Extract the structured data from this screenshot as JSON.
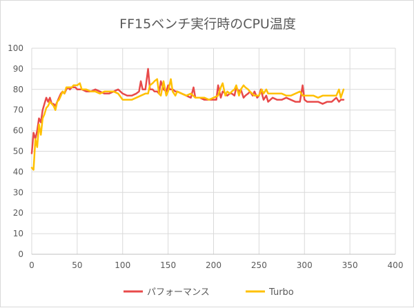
{
  "chart_data": {
    "type": "line",
    "title": "FF15ベンチ実行時のCPU温度",
    "xlabel": "",
    "ylabel": "",
    "xlim": [
      0,
      400
    ],
    "ylim": [
      0,
      100
    ],
    "xticks": [
      0,
      50,
      100,
      150,
      200,
      250,
      300,
      350,
      400
    ],
    "yticks": [
      0,
      10,
      20,
      30,
      40,
      50,
      60,
      70,
      80,
      90,
      100
    ],
    "grid": true,
    "legend_position": "bottom",
    "series": [
      {
        "name": "パフォーマンス",
        "color": "#e84a4a",
        "x": [
          0,
          2,
          4,
          6,
          8,
          10,
          12,
          14,
          16,
          18,
          20,
          22,
          24,
          26,
          28,
          30,
          32,
          34,
          36,
          38,
          40,
          42,
          44,
          46,
          48,
          50,
          55,
          60,
          65,
          70,
          75,
          80,
          85,
          90,
          95,
          100,
          105,
          110,
          115,
          118,
          120,
          122,
          125,
          128,
          130,
          133,
          135,
          138,
          140,
          142,
          145,
          148,
          150,
          152,
          155,
          158,
          160,
          165,
          170,
          175,
          178,
          180,
          185,
          190,
          195,
          200,
          203,
          205,
          208,
          210,
          213,
          215,
          218,
          220,
          223,
          225,
          228,
          230,
          233,
          235,
          238,
          240,
          243,
          245,
          248,
          250,
          252,
          255,
          258,
          260,
          265,
          270,
          275,
          280,
          285,
          290,
          295,
          298,
          300,
          303,
          305,
          310,
          315,
          320,
          325,
          330,
          335,
          338,
          340,
          343
        ],
        "y": [
          49,
          59,
          56,
          60,
          66,
          64,
          70,
          73,
          76,
          74,
          76,
          73,
          73,
          72,
          74,
          76,
          78,
          79,
          78,
          80,
          81,
          80,
          81,
          81,
          81,
          80,
          80,
          79,
          79,
          80,
          79,
          78,
          78,
          79,
          80,
          78,
          77,
          77,
          78,
          79,
          84,
          80,
          80,
          90,
          80,
          80,
          79,
          79,
          78,
          84,
          80,
          79,
          82,
          80,
          80,
          79,
          79,
          78,
          77,
          76,
          81,
          76,
          76,
          75,
          75,
          75,
          75,
          82,
          76,
          79,
          78,
          77,
          78,
          78,
          77,
          81,
          79,
          80,
          76,
          77,
          78,
          79,
          77,
          79,
          76,
          77,
          80,
          75,
          77,
          74,
          76,
          75,
          75,
          76,
          75,
          74,
          74,
          82,
          75,
          74,
          74,
          74,
          74,
          73,
          74,
          74,
          76,
          74,
          75,
          75
        ]
      },
      {
        "name": "Turbo",
        "color": "#ffc000",
        "x": [
          0,
          2,
          4,
          6,
          8,
          10,
          12,
          14,
          16,
          18,
          20,
          22,
          24,
          26,
          28,
          30,
          32,
          34,
          36,
          38,
          40,
          42,
          44,
          46,
          48,
          50,
          53,
          55,
          60,
          65,
          70,
          75,
          80,
          85,
          90,
          95,
          100,
          105,
          110,
          115,
          120,
          125,
          128,
          130,
          133,
          135,
          138,
          140,
          142,
          145,
          148,
          150,
          153,
          155,
          158,
          160,
          165,
          170,
          175,
          180,
          185,
          190,
          195,
          200,
          205,
          208,
          210,
          213,
          215,
          218,
          220,
          223,
          225,
          228,
          230,
          233,
          235,
          238,
          240,
          245,
          250,
          253,
          255,
          258,
          260,
          265,
          270,
          275,
          280,
          285,
          290,
          295,
          298,
          300,
          305,
          310,
          315,
          320,
          325,
          330,
          335,
          338,
          340,
          343
        ],
        "y": [
          42,
          41,
          56,
          52,
          63,
          58,
          66,
          68,
          71,
          72,
          74,
          73,
          72,
          70,
          74,
          75,
          77,
          79,
          78,
          81,
          81,
          81,
          81,
          82,
          82,
          82,
          83,
          80,
          80,
          79,
          79,
          78,
          79,
          79,
          79,
          78,
          75,
          75,
          75,
          76,
          77,
          78,
          78,
          82,
          83,
          84,
          85,
          78,
          77,
          84,
          77,
          79,
          85,
          79,
          77,
          79,
          78,
          77,
          78,
          76,
          76,
          76,
          75,
          76,
          77,
          81,
          83,
          77,
          79,
          78,
          79,
          80,
          82,
          77,
          80,
          82,
          81,
          80,
          79,
          77,
          77,
          80,
          78,
          80,
          78,
          78,
          78,
          78,
          77,
          77,
          78,
          79,
          77,
          77,
          77,
          77,
          76,
          77,
          77,
          77,
          77,
          80,
          76,
          80
        ]
      }
    ]
  }
}
